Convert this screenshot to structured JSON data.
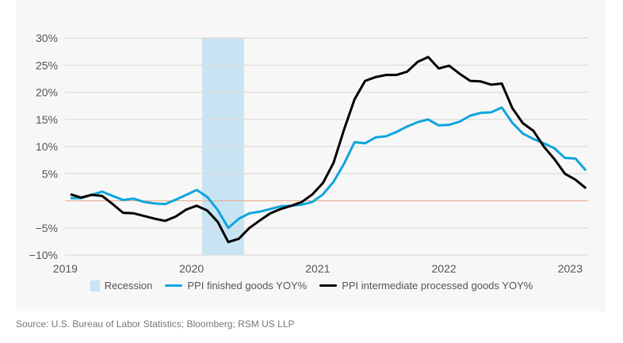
{
  "chart_data": {
    "type": "line",
    "title": "",
    "xlabel": "",
    "ylabel": "",
    "x_start": "2019-01",
    "x_frequency": "monthly",
    "x_ticks": [
      "2019",
      "2020",
      "2021",
      "2022",
      "2023"
    ],
    "y_ticks": [
      "30%",
      "25%",
      "20%",
      "15%",
      "10%",
      "5%",
      "",
      "−5%",
      "−10%"
    ],
    "y_tick_values": [
      30,
      25,
      20,
      15,
      10,
      5,
      0,
      -5,
      -10
    ],
    "ylim": [
      -10,
      30
    ],
    "grid": true,
    "zero_line_color": "#eba888",
    "legend_position": "bottom",
    "recession": {
      "name": "Recession",
      "start": "2020-02",
      "end": "2020-05",
      "color": "#c8e4f2"
    },
    "series": [
      {
        "name": "PPI finished goods YOY%",
        "color": "#0ea5dd",
        "values": [
          0.5,
          0.5,
          1.1,
          1.7,
          0.9,
          0.15,
          0.4,
          -0.2,
          -0.5,
          -0.6,
          0.2,
          1.1,
          2.0,
          0.7,
          -1.7,
          -5.0,
          -3.3,
          -2.3,
          -2.0,
          -1.5,
          -1.0,
          -0.9,
          -0.7,
          -0.2,
          1.2,
          3.5,
          6.8,
          10.8,
          10.6,
          11.7,
          11.9,
          12.7,
          13.7,
          14.5,
          15.0,
          13.9,
          14.0,
          14.6,
          15.7,
          16.2,
          16.3,
          17.2,
          14.4,
          12.4,
          11.4,
          10.6,
          9.7,
          7.9,
          7.8,
          5.6
        ]
      },
      {
        "name": "PPI intermediate processed goods YOY%",
        "color": "#000000",
        "values": [
          1.2,
          0.6,
          1.1,
          0.9,
          -0.6,
          -2.2,
          -2.3,
          -2.8,
          -3.3,
          -3.7,
          -2.9,
          -1.6,
          -0.9,
          -1.8,
          -3.9,
          -7.6,
          -7.0,
          -5.0,
          -3.6,
          -2.3,
          -1.5,
          -0.9,
          -0.2,
          1.2,
          3.3,
          7.0,
          13.1,
          18.7,
          22.1,
          22.8,
          23.2,
          23.2,
          23.8,
          25.6,
          26.5,
          24.4,
          24.9,
          23.4,
          22.1,
          22.0,
          21.4,
          21.6,
          17.1,
          14.3,
          12.9,
          10.0,
          7.7,
          5.0,
          3.9,
          2.3
        ]
      }
    ]
  },
  "source": "Source: U.S. Bureau of Labor Statistics; Bloomberg; RSM US LLP"
}
